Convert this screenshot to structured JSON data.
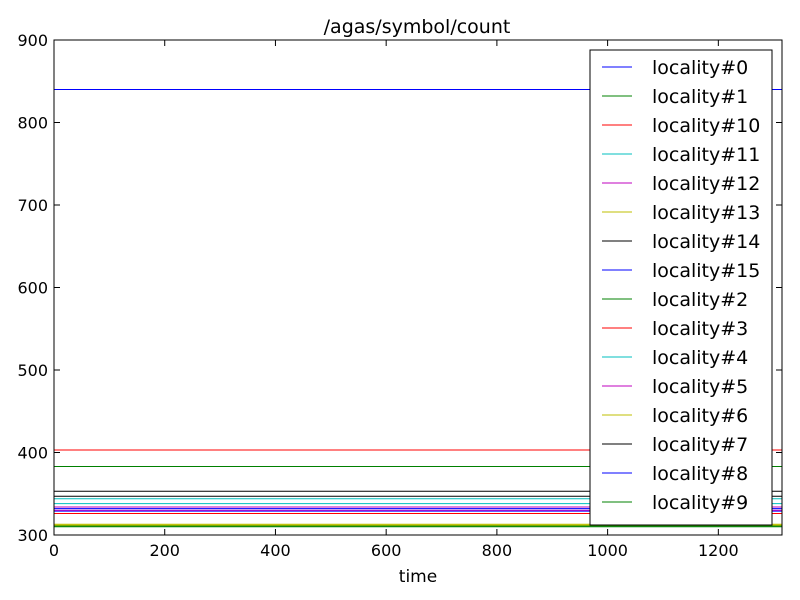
{
  "chart_data": {
    "type": "line",
    "title": "/agas/symbol/count",
    "xlabel": "time",
    "ylabel": "",
    "xlim": [
      0,
      1315
    ],
    "ylim": [
      300,
      900
    ],
    "xticks": [
      0,
      200,
      400,
      600,
      800,
      1000,
      1200
    ],
    "yticks": [
      300,
      400,
      500,
      600,
      700,
      800,
      900
    ],
    "grid": false,
    "legend_position": "top-right",
    "x": [
      0,
      1315
    ],
    "series": [
      {
        "name": "locality#0",
        "color": "#0000ff",
        "values": [
          840,
          840
        ]
      },
      {
        "name": "locality#1",
        "color": "#008000",
        "values": [
          383,
          383
        ]
      },
      {
        "name": "locality#10",
        "color": "#ff0000",
        "values": [
          403,
          403
        ]
      },
      {
        "name": "locality#11",
        "color": "#00bfbf",
        "values": [
          344,
          344
        ]
      },
      {
        "name": "locality#12",
        "color": "#bf00bf",
        "values": [
          330,
          330
        ]
      },
      {
        "name": "locality#13",
        "color": "#bfbf00",
        "values": [
          312,
          312
        ]
      },
      {
        "name": "locality#14",
        "color": "#000000",
        "values": [
          353,
          353
        ]
      },
      {
        "name": "locality#15",
        "color": "#0000ff",
        "values": [
          332,
          332
        ]
      },
      {
        "name": "locality#2",
        "color": "#008000",
        "values": [
          310,
          310
        ]
      },
      {
        "name": "locality#3",
        "color": "#ff0000",
        "values": [
          326,
          326
        ]
      },
      {
        "name": "locality#4",
        "color": "#00bfbf",
        "values": [
          338,
          338
        ]
      },
      {
        "name": "locality#5",
        "color": "#bf00bf",
        "values": [
          334,
          334
        ]
      },
      {
        "name": "locality#6",
        "color": "#bfbf00",
        "values": [
          313,
          313
        ]
      },
      {
        "name": "locality#7",
        "color": "#000000",
        "values": [
          347,
          347
        ]
      },
      {
        "name": "locality#8",
        "color": "#0000ff",
        "values": [
          329,
          329
        ]
      },
      {
        "name": "locality#9",
        "color": "#008000",
        "values": [
          311,
          311
        ]
      }
    ]
  }
}
